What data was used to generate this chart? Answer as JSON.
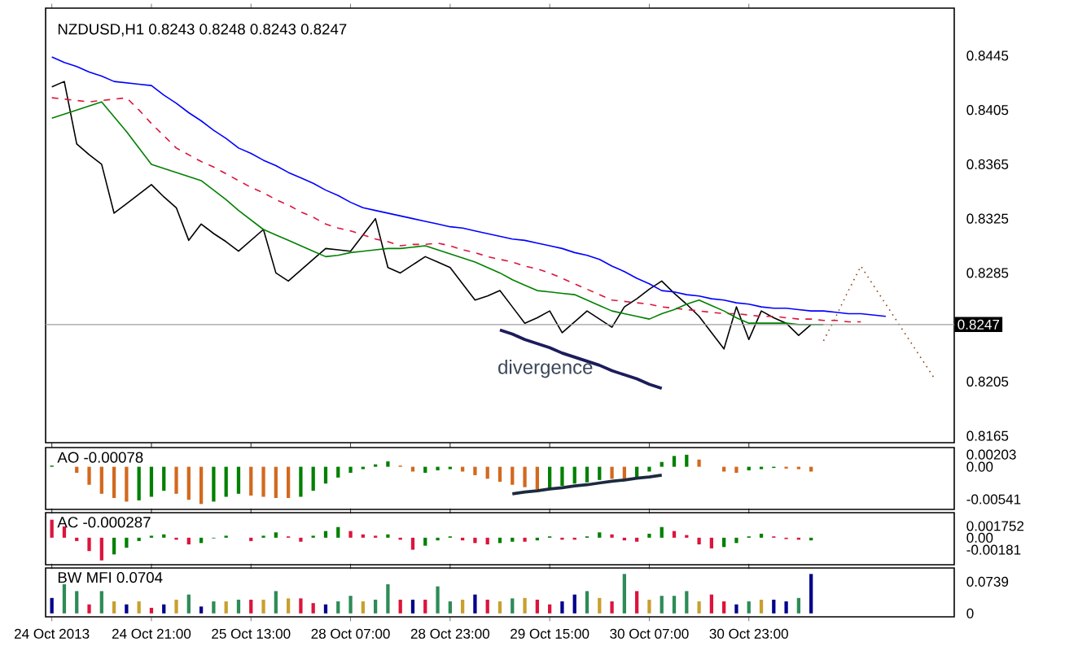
{
  "chart_data": [
    {
      "type": "line",
      "title": "NZDUSD,H1  0.8243 0.8248 0.8243 0.8247",
      "ylim": [
        0.816,
        0.848
      ],
      "yticks": [
        0.8445,
        0.8405,
        0.8365,
        0.8325,
        0.8285,
        0.8205,
        0.8165
      ],
      "tick_labels": "y",
      "ref_lines": [
        {
          "axis": "y",
          "value": 0.8247,
          "label": "0.8247",
          "color": "#a0a0a0"
        }
      ],
      "annotations": [
        "divergence"
      ],
      "series": [
        {
          "color": "#000000",
          "values": [
            0.8422,
            0.8426,
            0.838,
            0.8372,
            0.8365,
            0.8329,
            0.8336,
            0.8343,
            0.835,
            0.8341,
            0.8333,
            0.8309,
            0.8321,
            0.8314,
            0.8308,
            0.8301,
            0.8309,
            0.8317,
            0.8285,
            0.8279,
            0.8287,
            0.8295,
            0.8303,
            0.8302,
            0.8301,
            0.8313,
            0.8325,
            0.8289,
            0.8285,
            0.8291,
            0.8297,
            0.8293,
            0.8289,
            0.8277,
            0.8265,
            0.8268,
            0.8272,
            0.826,
            0.8248,
            0.8252,
            0.8257,
            0.8241,
            0.8249,
            0.8257,
            0.8251,
            0.8245,
            0.826,
            0.8266,
            0.8273,
            0.8279,
            0.827,
            0.8262,
            0.8253,
            0.8241,
            0.8229,
            0.826,
            0.8236,
            0.8257,
            0.8252,
            0.8248,
            0.8239,
            0.8247,
            null,
            null,
            null,
            null,
            null,
            null,
            null,
            null,
            null,
            null,
            null
          ]
        },
        {
          "color": "#0000ff",
          "values": [
            0.8444,
            0.844,
            0.8437,
            0.8433,
            0.843,
            0.8426,
            0.8425,
            0.8424,
            0.8423,
            0.8416,
            0.841,
            0.8403,
            0.8397,
            0.839,
            0.8384,
            0.8377,
            0.8373,
            0.8368,
            0.8364,
            0.8359,
            0.8355,
            0.8351,
            0.8346,
            0.8342,
            0.8337,
            0.8333,
            0.8331,
            0.8329,
            0.8327,
            0.8325,
            0.8323,
            0.8321,
            0.8319,
            0.8318,
            0.8316,
            0.8314,
            0.8312,
            0.831,
            0.8309,
            0.8307,
            0.8305,
            0.8303,
            0.83,
            0.8298,
            0.8295,
            0.829,
            0.8286,
            0.8281,
            0.8277,
            0.8272,
            0.8271,
            0.8269,
            0.8268,
            0.8266,
            0.8265,
            0.8263,
            0.8262,
            0.826,
            0.8259,
            0.8259,
            0.8258,
            0.8257,
            0.8257,
            0.8256,
            0.8255,
            0.8255,
            0.8254,
            0.8253,
            null,
            null,
            null,
            null,
            null
          ]
        },
        {
          "color": "#dc143c",
          "line_style": "dashed",
          "values": [
            0.8414,
            0.8413,
            0.8412,
            0.8411,
            0.8412,
            0.8413,
            0.8414,
            0.8405,
            0.8395,
            0.8386,
            0.8377,
            0.8372,
            0.8367,
            0.8363,
            0.8358,
            0.8353,
            0.8348,
            0.8344,
            0.8339,
            0.8335,
            0.833,
            0.8326,
            0.8321,
            0.8318,
            0.8316,
            0.8313,
            0.831,
            0.8308,
            0.8305,
            0.8306,
            0.8306,
            0.8307,
            0.8305,
            0.8302,
            0.83,
            0.8297,
            0.8295,
            0.8293,
            0.829,
            0.8288,
            0.8285,
            0.8281,
            0.8277,
            0.8273,
            0.8269,
            0.8265,
            0.8264,
            0.8263,
            0.8262,
            0.826,
            0.8259,
            0.8258,
            0.8257,
            0.8256,
            0.8255,
            0.8255,
            0.8254,
            0.8253,
            0.8253,
            0.8252,
            0.8251,
            0.8251,
            0.825,
            0.825,
            0.8249,
            0.8249,
            null,
            null,
            null,
            null,
            null,
            null,
            null
          ]
        },
        {
          "color": "#008000",
          "values": [
            0.8399,
            0.8402,
            0.8405,
            0.8408,
            0.8411,
            0.84,
            0.8389,
            0.8377,
            0.8365,
            0.8362,
            0.8359,
            0.8356,
            0.8353,
            0.8346,
            0.8339,
            0.8331,
            0.8324,
            0.8317,
            0.8313,
            0.8309,
            0.8305,
            0.8301,
            0.8297,
            0.8298,
            0.83,
            0.8301,
            0.8302,
            0.8303,
            0.8303,
            0.8304,
            0.8305,
            0.8302,
            0.8299,
            0.8296,
            0.8293,
            0.8289,
            0.8285,
            0.828,
            0.8276,
            0.8272,
            0.8271,
            0.827,
            0.8269,
            0.8265,
            0.8261,
            0.8257,
            0.8255,
            0.8253,
            0.8251,
            0.8255,
            0.8258,
            0.8262,
            0.8265,
            0.8261,
            0.8257,
            0.8252,
            0.8248,
            0.8248,
            0.8248,
            0.8248,
            0.8247,
            0.8247,
            0.8247,
            null,
            null,
            null,
            null,
            null,
            null,
            null,
            null,
            null,
            null
          ]
        },
        {
          "color": "#8b4513",
          "line_style": "dotted",
          "values": [
            null,
            null,
            null,
            null,
            null,
            null,
            null,
            null,
            null,
            null,
            null,
            null,
            null,
            null,
            null,
            null,
            null,
            null,
            null,
            null,
            null,
            null,
            null,
            null,
            null,
            null,
            null,
            null,
            null,
            null,
            null,
            null,
            null,
            null,
            null,
            null,
            null,
            null,
            null,
            null,
            null,
            null,
            null,
            null,
            null,
            null,
            null,
            null,
            null,
            null,
            null,
            null,
            null,
            null,
            null,
            null,
            null,
            null,
            null,
            null,
            null,
            null,
            0.8235,
            0.8253,
            0.8272,
            0.829,
            0.8276,
            0.8262,
            0.8248,
            0.8234,
            0.822,
            0.8206,
            null
          ]
        },
        {
          "color": "#1c1c5c",
          "values": [
            null,
            null,
            null,
            null,
            null,
            null,
            null,
            null,
            null,
            null,
            null,
            null,
            null,
            null,
            null,
            null,
            null,
            null,
            null,
            null,
            null,
            null,
            null,
            null,
            null,
            null,
            null,
            null,
            null,
            null,
            null,
            null,
            null,
            null,
            null,
            null,
            0.8243,
            0.824,
            0.8236,
            0.8233,
            0.823,
            0.8226,
            0.8223,
            0.822,
            0.8217,
            0.8213,
            0.821,
            0.8207,
            0.8203,
            0.82,
            null,
            null,
            null,
            null,
            null,
            null,
            null,
            null,
            null,
            null,
            null,
            null,
            null,
            null,
            null,
            null,
            null,
            null,
            null,
            null,
            null,
            null,
            null
          ]
        }
      ]
    },
    {
      "type": "bar",
      "title": "AO -0.00078",
      "ylim": [
        -0.0071,
        0.0032
      ],
      "yticks": [
        0.00203,
        {
          "value": 0,
          "label": "0.00"
        },
        -0.00541
      ],
      "tick_labels": "y",
      "series": [
        {
          "values": [
            0.0002,
            0,
            -0.001,
            -0.003,
            -0.0045,
            -0.0052,
            -0.0058,
            -0.0056,
            -0.005,
            -0.004,
            -0.0045,
            -0.0055,
            -0.0062,
            -0.0058,
            -0.005,
            -0.0045,
            -0.0048,
            -0.005,
            -0.0052,
            -0.0052,
            -0.005,
            -0.004,
            -0.0028,
            -0.0018,
            -0.001,
            -0.0004,
            0.0004,
            0.0009,
            0.0002,
            -0.0008,
            -0.001,
            -0.0006,
            -0.0004,
            -0.0008,
            -0.0014,
            -0.002,
            -0.0025,
            -0.003,
            -0.0034,
            -0.0038,
            -0.0036,
            -0.0032,
            -0.0028,
            -0.0026,
            -0.0022,
            -0.002,
            -0.0022,
            -0.0018,
            -0.0008,
            0.0008,
            0.0018,
            0.002,
            0.0012,
            0.0,
            -0.0008,
            -0.001,
            -0.0006,
            -0.0004,
            -0.0002,
            -0.0003,
            -0.0004,
            -0.0008,
            null,
            null,
            null,
            null,
            null,
            null,
            null,
            null,
            null,
            null,
            null
          ],
          "colors": [
            "#008000",
            "#008000",
            "#d2691e",
            "#d2691e",
            "#d2691e",
            "#d2691e",
            "#d2691e",
            "#008000",
            "#008000",
            "#008000",
            "#d2691e",
            "#d2691e",
            "#d2691e",
            "#008000",
            "#008000",
            "#008000",
            "#d2691e",
            "#d2691e",
            "#d2691e",
            "#d2691e",
            "#008000",
            "#008000",
            "#008000",
            "#008000",
            "#008000",
            "#008000",
            "#008000",
            "#008000",
            "#d2691e",
            "#d2691e",
            "#008000",
            "#008000",
            "#008000",
            "#d2691e",
            "#d2691e",
            "#d2691e",
            "#d2691e",
            "#d2691e",
            "#d2691e",
            "#d2691e",
            "#008000",
            "#008000",
            "#008000",
            "#008000",
            "#008000",
            "#d2691e",
            "#d2691e",
            "#008000",
            "#008000",
            "#008000",
            "#008000",
            "#008000",
            "#d2691e",
            "#d2691e",
            "#d2691e",
            "#d2691e",
            "#008000",
            "#008000",
            "#008000",
            "#d2691e",
            "#d2691e",
            "#d2691e",
            null,
            null,
            null,
            null,
            null,
            null,
            null,
            null,
            null,
            null,
            null
          ]
        },
        {
          "type": "line",
          "color": "#1c2a40",
          "values": [
            null,
            null,
            null,
            null,
            null,
            null,
            null,
            null,
            null,
            null,
            null,
            null,
            null,
            null,
            null,
            null,
            null,
            null,
            null,
            null,
            null,
            null,
            null,
            null,
            null,
            null,
            null,
            null,
            null,
            null,
            null,
            null,
            null,
            null,
            null,
            null,
            null,
            -0.0045,
            -0.0042,
            -0.004,
            -0.0037,
            -0.0035,
            -0.0032,
            -0.003,
            -0.0027,
            -0.0024,
            -0.0022,
            -0.0019,
            -0.0017,
            -0.0014,
            null,
            null,
            null,
            null,
            null,
            null,
            null,
            null,
            null,
            null,
            null,
            null,
            null,
            null,
            null,
            null,
            null,
            null,
            null,
            null,
            null,
            null,
            null
          ]
        }
      ]
    },
    {
      "type": "bar",
      "title": "AC -0.000287",
      "ylim": [
        -0.00405,
        0.00376
      ],
      "yticks": [
        0.001752,
        {
          "value": 0,
          "label": "0.00"
        },
        -0.00181
      ],
      "tick_labels": "y",
      "series": [
        {
          "values": [
            0.0027,
            0.0017,
            -0.0005,
            -0.002,
            -0.0034,
            -0.0025,
            -0.0015,
            -0.0005,
            0.0003,
            0.0005,
            -0.0003,
            -0.001,
            -0.0008,
            -0.0001,
            0.0003,
            0.0,
            -0.0005,
            0.0003,
            0.0008,
            0.0002,
            -0.0006,
            0.0003,
            0.001,
            0.0016,
            0.001,
            0.0005,
            0.0003,
            0.0005,
            -0.0003,
            -0.0018,
            -0.0012,
            -0.0004,
            0.0002,
            -0.0004,
            -0.0008,
            -0.001,
            -0.0008,
            -0.0006,
            -0.0006,
            -0.0004,
            0.0002,
            -0.0003,
            -0.0003,
            0.0002,
            0.0008,
            0.0005,
            -0.0004,
            -0.0006,
            0.0006,
            0.0016,
            0.001,
            0.0004,
            -0.001,
            -0.0016,
            -0.0014,
            -0.0008,
            0.0002,
            0.0006,
            0.0002,
            -0.0002,
            -0.0003,
            -0.0004,
            null,
            null,
            null,
            null,
            null,
            null,
            null,
            null,
            null,
            null,
            null
          ],
          "colors": [
            "#dc143c",
            "#dc143c",
            "#dc143c",
            "#dc143c",
            "#dc143c",
            "#008000",
            "#008000",
            "#008000",
            "#008000",
            "#008000",
            "#dc143c",
            "#dc143c",
            "#008000",
            "#008000",
            "#008000",
            "#dc143c",
            "#dc143c",
            "#008000",
            "#008000",
            "#dc143c",
            "#dc143c",
            "#008000",
            "#008000",
            "#008000",
            "#dc143c",
            "#dc143c",
            "#dc143c",
            "#008000",
            "#dc143c",
            "#dc143c",
            "#008000",
            "#008000",
            "#008000",
            "#dc143c",
            "#dc143c",
            "#dc143c",
            "#008000",
            "#008000",
            "#dc143c",
            "#008000",
            "#008000",
            "#dc143c",
            "#dc143c",
            "#008000",
            "#008000",
            "#dc143c",
            "#dc143c",
            "#dc143c",
            "#008000",
            "#008000",
            "#dc143c",
            "#dc143c",
            "#dc143c",
            "#dc143c",
            "#008000",
            "#008000",
            "#008000",
            "#008000",
            "#dc143c",
            "#dc143c",
            "#dc143c",
            "#008000",
            null,
            null,
            null,
            null,
            null,
            null,
            null,
            null,
            null,
            null,
            null
          ]
        }
      ]
    },
    {
      "type": "bar",
      "title": "BW MFI 0.0704",
      "ylim": [
        -0.008,
        0.106
      ],
      "yticks": [
        0.0739,
        0
      ],
      "categories": [
        "24 Oct 2013",
        null,
        null,
        null,
        null,
        null,
        null,
        null,
        "24 Oct 21:00",
        null,
        null,
        null,
        null,
        null,
        null,
        null,
        "25 Oct 13:00",
        null,
        null,
        null,
        null,
        null,
        null,
        null,
        "28 Oct 07:00",
        null,
        null,
        null,
        null,
        null,
        null,
        null,
        "28 Oct 23:00",
        null,
        null,
        null,
        null,
        null,
        null,
        null,
        "29 Oct 15:00",
        null,
        null,
        null,
        null,
        null,
        null,
        null,
        "30 Oct 07:00",
        null,
        null,
        null,
        null,
        null,
        null,
        null,
        "30 Oct 23:00",
        null,
        null,
        null,
        null,
        null,
        null,
        null,
        null,
        null,
        null,
        null,
        null,
        null,
        null,
        null,
        null
      ],
      "series": [
        {
          "values": [
            0.036,
            0.068,
            0.052,
            0.021,
            0.052,
            0.028,
            0.021,
            0.028,
            0.013,
            0.021,
            0.032,
            0.044,
            0.016,
            0.028,
            0.028,
            0.032,
            0.032,
            0.032,
            0.052,
            0.035,
            0.035,
            0.024,
            0.021,
            0.028,
            0.041,
            0.028,
            0.032,
            0.068,
            0.032,
            0.032,
            0.032,
            0.063,
            0.028,
            0.032,
            0.044,
            0.032,
            0.028,
            0.035,
            0.036,
            0.032,
            0.021,
            0.028,
            0.044,
            0.052,
            0.036,
            0.028,
            0.092,
            0.052,
            0.032,
            0.041,
            0.041,
            0.052,
            0.028,
            0.044,
            0.028,
            0.021,
            0.028,
            0.032,
            0.032,
            0.028,
            0.036,
            0.092,
            null,
            null,
            null,
            null,
            null,
            null,
            null,
            null,
            null,
            null,
            null
          ],
          "colors": [
            "#00008b",
            "#2e8b57",
            "#2e8b57",
            "#dc143c",
            "#2e8b57",
            "#c8a030",
            "#00008b",
            "#c8a030",
            "#dc143c",
            "#00008b",
            "#c8a030",
            "#2e8b57",
            "#00008b",
            "#2e8b57",
            "#c8a030",
            "#2e8b57",
            "#dc143c",
            "#c8a030",
            "#2e8b57",
            "#c8a030",
            "#dc143c",
            "#dc143c",
            "#00008b",
            "#2e8b57",
            "#2e8b57",
            "#c8a030",
            "#2e8b57",
            "#2e8b57",
            "#dc143c",
            "#00008b",
            "#dc143c",
            "#2e8b57",
            "#2e8b57",
            "#c8a030",
            "#00008b",
            "#dc143c",
            "#c8a030",
            "#2e8b57",
            "#c8a030",
            "#dc143c",
            "#dc143c",
            "#00008b",
            "#00008b",
            "#2e8b57",
            "#c8a030",
            "#dc143c",
            "#2e8b57",
            "#dc143c",
            "#c8a030",
            "#2e8b57",
            "#2e8b57",
            "#2e8b57",
            "#c8a030",
            "#dc143c",
            "#dc143c",
            "#00008b",
            "#2e8b57",
            "#c8a030",
            "#00008b",
            "#00008b",
            "#2e8b57",
            "#00008b",
            null,
            null,
            null,
            null,
            null,
            null,
            null,
            null,
            null,
            null,
            null
          ]
        }
      ]
    }
  ]
}
